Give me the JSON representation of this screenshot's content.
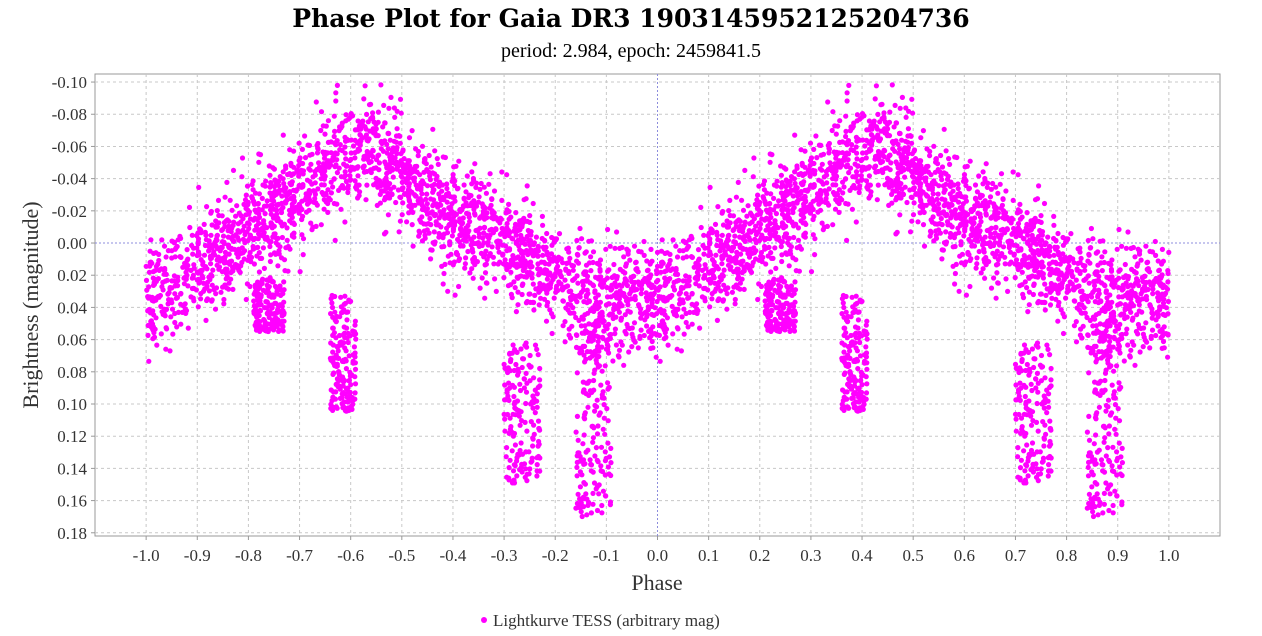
{
  "chart_data": {
    "type": "scatter",
    "title": "Phase Plot for Gaia DR3 1903145952125204736",
    "subtitle": "period: 2.984, epoch: 2459841.5",
    "xlabel": "Phase",
    "ylabel": "Brightness (magnitude)",
    "xlim": [
      -1.1,
      1.1
    ],
    "ylim": [
      -0.105,
      0.182
    ],
    "y_inverted": true,
    "grid": true,
    "legend_position": "bottom-center",
    "x_ticks": [
      "-1.0",
      "-0.9",
      "-0.8",
      "-0.7",
      "-0.6",
      "-0.5",
      "-0.4",
      "-0.3",
      "-0.2",
      "-0.1",
      "0.0",
      "0.1",
      "0.2",
      "0.3",
      "0.4",
      "0.5",
      "0.6",
      "0.7",
      "0.8",
      "0.9",
      "1.0"
    ],
    "y_ticks": [
      "-0.10",
      "-0.08",
      "-0.06",
      "-0.04",
      "-0.02",
      "0.00",
      "0.02",
      "0.04",
      "0.06",
      "0.08",
      "0.10",
      "0.12",
      "0.14",
      "0.16",
      "0.18"
    ],
    "series": [
      {
        "name": "Lightkurve TESS (arbitrary mag)",
        "color": "#ff00ff",
        "marker": "circle",
        "mean_curve": {
          "phase": [
            0.0,
            0.1,
            0.2,
            0.3,
            0.35,
            0.43,
            0.5,
            0.6,
            0.7,
            0.8,
            0.85,
            0.9,
            0.95,
            1.0
          ],
          "mag": [
            0.035,
            0.015,
            -0.005,
            -0.03,
            -0.045,
            -0.06,
            -0.045,
            -0.015,
            0.0,
            0.02,
            0.035,
            0.04,
            0.035,
            0.035
          ]
        },
        "dip_clusters": [
          {
            "phase_range": [
              0.36,
              0.41
            ],
            "mag_range": [
              0.03,
              0.105
            ]
          },
          {
            "phase_range": [
              0.7,
              0.77
            ],
            "mag_range": [
              0.06,
              0.15
            ]
          },
          {
            "phase_range": [
              0.84,
              0.91
            ],
            "mag_range": [
              0.05,
              0.17
            ]
          },
          {
            "phase_range": [
              0.21,
              0.27
            ],
            "mag_range": [
              0.02,
              0.055
            ]
          }
        ]
      }
    ]
  }
}
